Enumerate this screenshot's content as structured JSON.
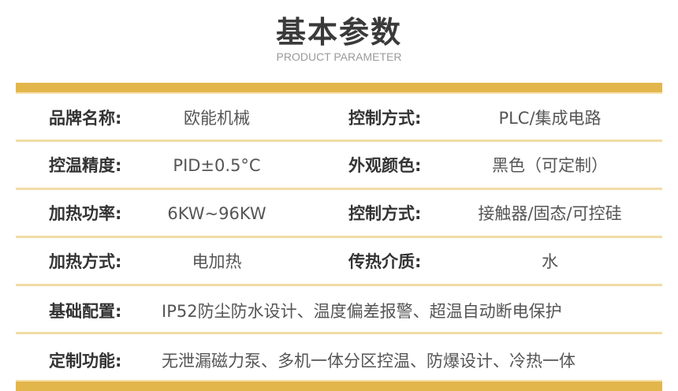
{
  "title": "基本参数",
  "subtitle": "PRODUCT PARAMETER",
  "rows": [
    {
      "l1": "品牌名称:",
      "v1": "欧能机械",
      "l2": "控制方式:",
      "v2": "PLC/集成电路"
    },
    {
      "l1": "控温精度:",
      "v1": "PID±0.5°C",
      "l2": "外观颜色:",
      "v2": "黑色（可定制）"
    },
    {
      "l1": "加热功率:",
      "v1": "6KW~96KW",
      "l2": "控制方式:",
      "v2": "接触器/固态/可控硅"
    },
    {
      "l1": "加热方式:",
      "v1": "电加热",
      "l2": "传热介质:",
      "v2": "水"
    },
    {
      "l1": "基础配置:",
      "v1": "IP52防尘防水设计、温度偏差报警、超温自动断电保护"
    },
    {
      "l1": "定制功能:",
      "v1": "无泄漏磁力泵、多机一体分区控温、防爆设计、冷热一体"
    }
  ],
  "colors": {
    "accent": "#e3b64c",
    "divider": "#f2dca6"
  }
}
